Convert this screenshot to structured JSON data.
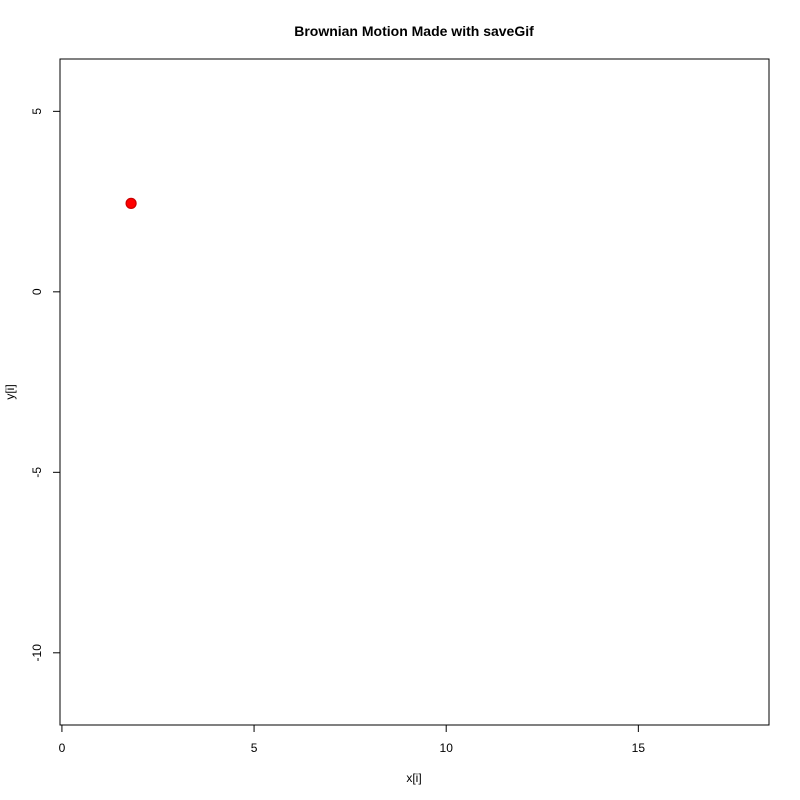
{
  "chart_data": {
    "type": "scatter",
    "title": "Brownian Motion Made with saveGif",
    "xlabel": "x[i]",
    "ylabel": "y[i]",
    "xlim": [
      -0.05,
      18.4
    ],
    "ylim": [
      -12.0,
      6.45
    ],
    "xticks": [
      0,
      5,
      10,
      15
    ],
    "yticks": [
      -10,
      -5,
      0,
      5
    ],
    "grid": false,
    "points": [
      {
        "x": 1.8,
        "y": 2.45,
        "color": "#ff0000"
      }
    ]
  }
}
